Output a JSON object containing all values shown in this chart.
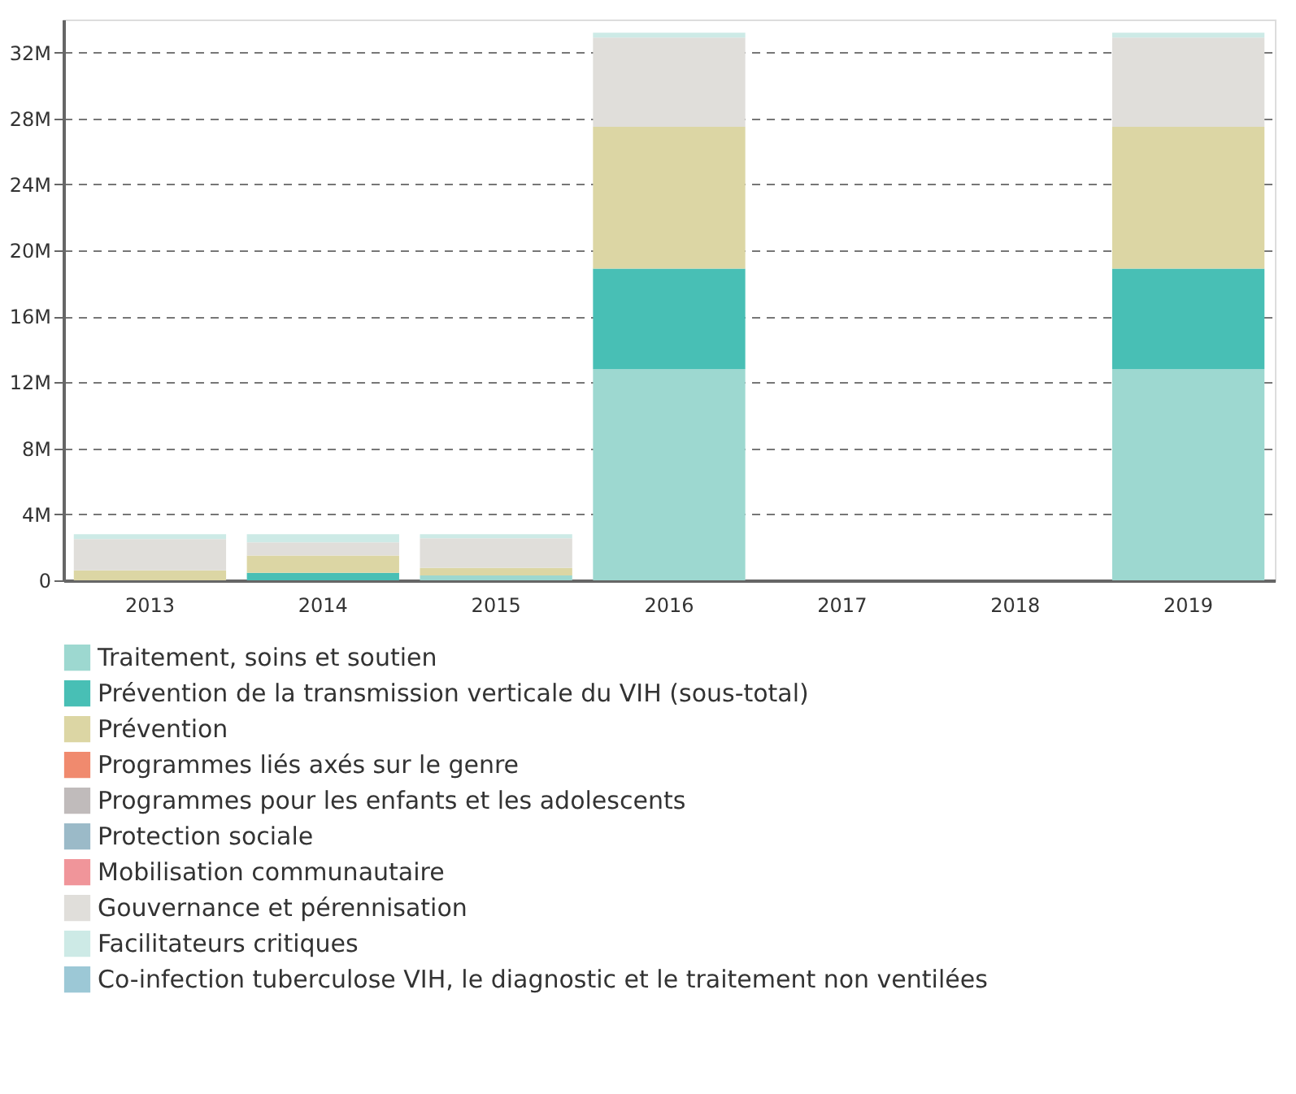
{
  "chart_data": {
    "type": "bar",
    "stacked": true,
    "legend": "bottom",
    "grid": "y",
    "categories": [
      "2013",
      "2014",
      "2015",
      "2016",
      "2017",
      "2018",
      "2019"
    ],
    "ylim": [
      0,
      34000000
    ],
    "yticks": [
      0,
      {
        "value": 4000000,
        "label": "4M"
      },
      {
        "value": 8000000,
        "label": "8M"
      },
      {
        "value": 12000000,
        "label": "12M"
      },
      {
        "value": 16000000,
        "label": "16M"
      },
      {
        "value": 20000000,
        "label": "20M"
      },
      {
        "value": 24000000,
        "label": "24M"
      },
      {
        "value": 28000000,
        "label": "28M"
      },
      {
        "value": 32000000,
        "label": "32M"
      }
    ],
    "series": [
      {
        "name": "Traitement, soins et soutien",
        "color": "#9dd8d0",
        "values": [
          null,
          null,
          300000,
          12800000,
          null,
          null,
          12800000
        ]
      },
      {
        "name": "Prévention de la transmission verticale du VIH (sous-total)",
        "color": "#48bfb5",
        "values": [
          null,
          450000,
          null,
          6100000,
          null,
          null,
          6100000
        ]
      },
      {
        "name": "Prévention",
        "color": "#dcd6a4",
        "values": [
          600000,
          1050000,
          450000,
          8600000,
          null,
          null,
          8600000
        ]
      },
      {
        "name": "Programmes liés axés sur le genre",
        "color": "#f08a6e",
        "values": [
          null,
          null,
          null,
          null,
          null,
          null,
          null
        ]
      },
      {
        "name": "Programmes pour les enfants et les adolescents",
        "color": "#c0bbbb",
        "values": [
          null,
          null,
          null,
          null,
          null,
          null,
          null
        ]
      },
      {
        "name": "Protection sociale",
        "color": "#9bbac8",
        "values": [
          null,
          null,
          null,
          null,
          null,
          null,
          null
        ]
      },
      {
        "name": "Mobilisation communautaire",
        "color": "#f0959a",
        "values": [
          null,
          null,
          null,
          null,
          null,
          null,
          null
        ]
      },
      {
        "name": "Gouvernance et pérennisation",
        "color": "#e0deda",
        "values": [
          1900000,
          800000,
          1800000,
          5400000,
          null,
          null,
          5400000
        ]
      },
      {
        "name": "Facilitateurs critiques",
        "color": "#cdeae6",
        "values": [
          300000,
          500000,
          250000,
          300000,
          null,
          null,
          300000
        ]
      },
      {
        "name": "Co-infection tuberculose VIH, le diagnostic et le traitement non ventilées",
        "color": "#9cc8d6",
        "values": [
          null,
          null,
          null,
          null,
          null,
          null,
          null
        ]
      }
    ]
  }
}
